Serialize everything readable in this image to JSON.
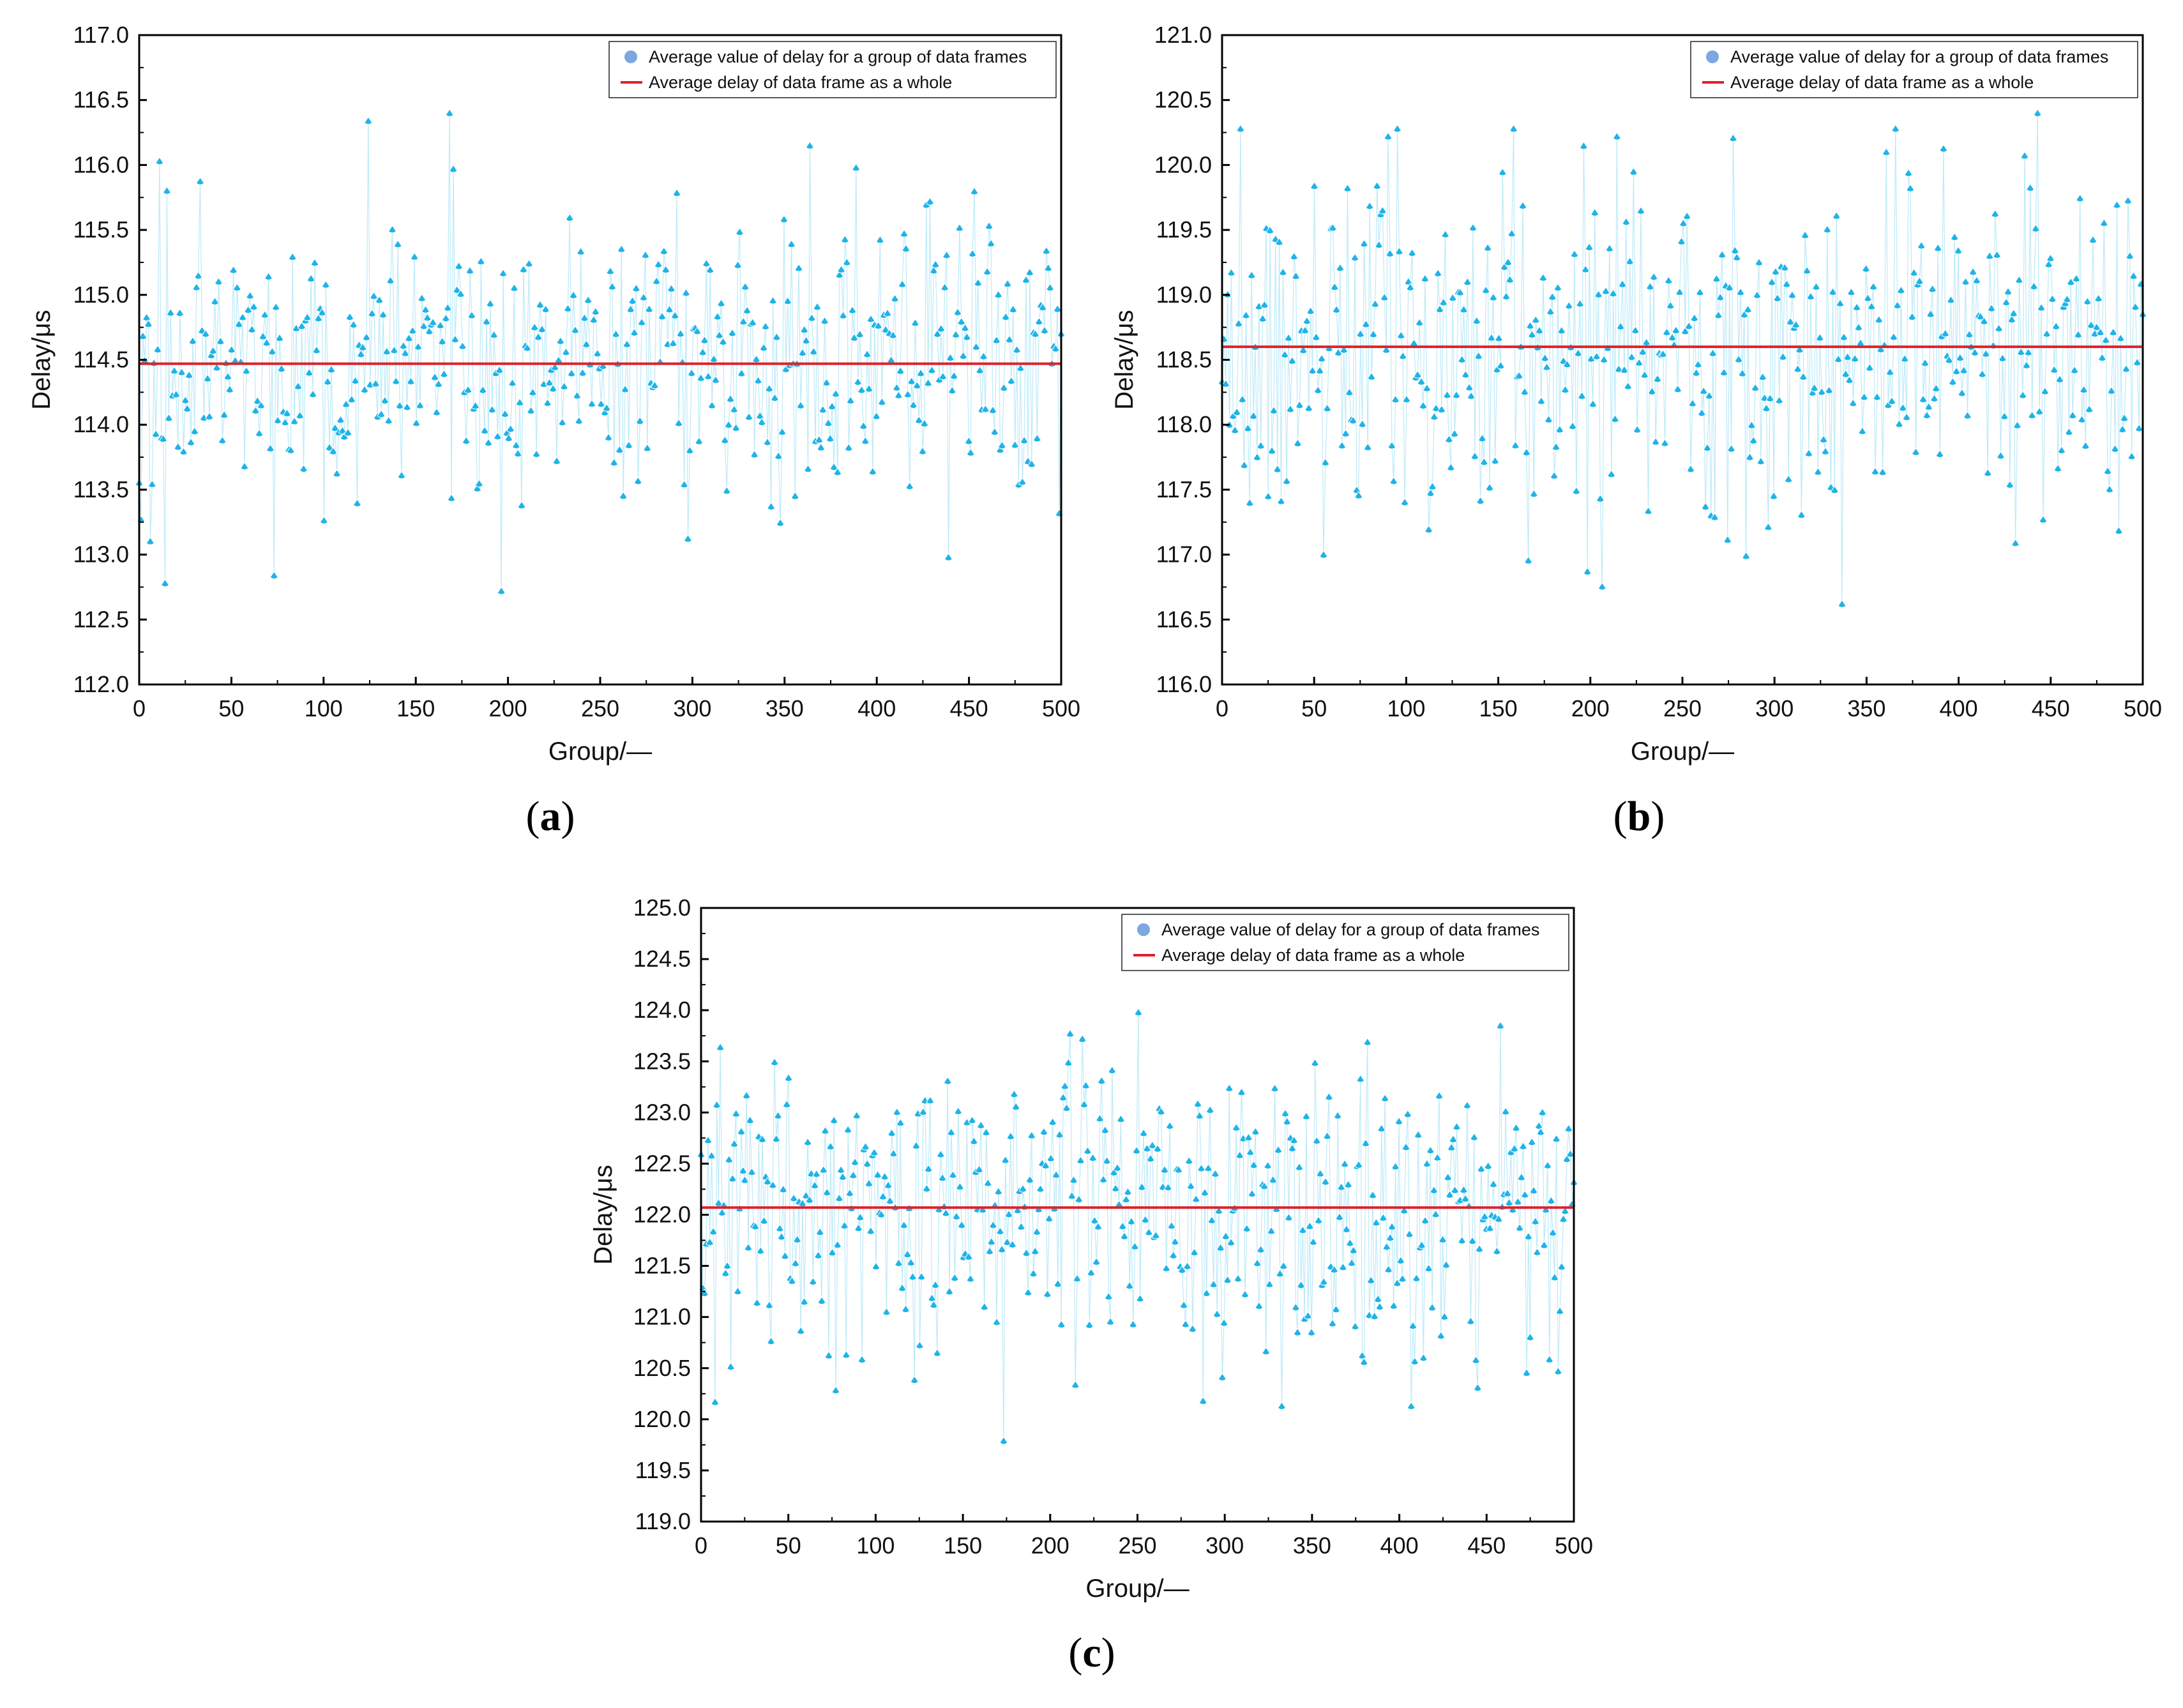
{
  "legend": {
    "marker_label": "Average value of delay for a group of data frames",
    "line_label": "Average delay of data frame as a whole"
  },
  "colors": {
    "marker": "#1EB4E8",
    "marker_legend": "#7DA7E0",
    "mean_line": "#E0202A",
    "connector": "#BDEAF8"
  },
  "chart_data": [
    {
      "id": "a",
      "type": "scatter",
      "caption": "a",
      "xlabel": "Group/—",
      "ylabel": "Delay/μs",
      "xlim": [
        0,
        500
      ],
      "ylim": [
        112.0,
        117.0
      ],
      "xticks": [
        "0",
        "50",
        "100",
        "150",
        "200",
        "250",
        "300",
        "350",
        "400",
        "450",
        "500"
      ],
      "yticks": [
        "112.0",
        "112.5",
        "113.0",
        "113.5",
        "114.0",
        "114.5",
        "115.0",
        "115.5",
        "116.0",
        "116.5",
        "117.0"
      ],
      "mean": 114.47,
      "legend_position": "top-right",
      "n_points": 500,
      "points_min": 112.72,
      "points_max": 116.4,
      "point_spread": 0.58,
      "highlights": [
        [
          1,
          113.27
        ],
        [
          11,
          116.03
        ],
        [
          14,
          112.78
        ],
        [
          124,
          116.34
        ],
        [
          168,
          116.4
        ],
        [
          170,
          115.97
        ],
        [
          196,
          112.72
        ],
        [
          363,
          116.15
        ],
        [
          388,
          115.98
        ],
        [
          438,
          112.98
        ]
      ]
    },
    {
      "id": "b",
      "type": "scatter",
      "caption": "b",
      "xlabel": "Group/—",
      "ylabel": "Delay/μs",
      "xlim": [
        0,
        500
      ],
      "ylim": [
        116.0,
        121.0
      ],
      "xticks": [
        "0",
        "50",
        "100",
        "150",
        "200",
        "250",
        "300",
        "350",
        "400",
        "450",
        "500"
      ],
      "yticks": [
        "116.0",
        "116.5",
        "117.0",
        "117.5",
        "118.0",
        "118.5",
        "119.0",
        "119.5",
        "120.0",
        "120.5",
        "121.0"
      ],
      "mean": 118.6,
      "legend_position": "top-right",
      "n_points": 500,
      "points_min": 116.62,
      "points_max": 120.4,
      "point_spread": 0.66,
      "highlights": [
        [
          55,
          117.0
        ],
        [
          90,
          120.22
        ],
        [
          95,
          120.28
        ],
        [
          198,
          116.87
        ],
        [
          214,
          120.22
        ],
        [
          284,
          116.99
        ],
        [
          336,
          116.62
        ],
        [
          360,
          120.1
        ],
        [
          442,
          120.4
        ],
        [
          445,
          117.27
        ]
      ]
    },
    {
      "id": "c",
      "type": "scatter",
      "caption": "c",
      "xlabel": "Group/—",
      "ylabel": "Delay/μs",
      "xlim": [
        0,
        500
      ],
      "ylim": [
        119.0,
        125.0
      ],
      "xticks": [
        "0",
        "50",
        "100",
        "150",
        "200",
        "250",
        "300",
        "350",
        "400",
        "450",
        "500"
      ],
      "yticks": [
        "119.0",
        "119.5",
        "120.0",
        "120.5",
        "121.0",
        "121.5",
        "122.0",
        "122.5",
        "123.0",
        "123.5",
        "124.0",
        "124.5",
        "125.0"
      ],
      "mean": 122.07,
      "legend_position": "top-right",
      "n_points": 500,
      "points_min": 119.79,
      "points_max": 123.98,
      "point_spread": 0.68,
      "highlights": [
        [
          8,
          120.17
        ],
        [
          173,
          119.79
        ],
        [
          218,
          123.72
        ],
        [
          250,
          123.98
        ],
        [
          287,
          120.18
        ],
        [
          332,
          120.13
        ],
        [
          406,
          120.13
        ],
        [
          457,
          123.85
        ],
        [
          490,
          120.47
        ]
      ]
    }
  ]
}
